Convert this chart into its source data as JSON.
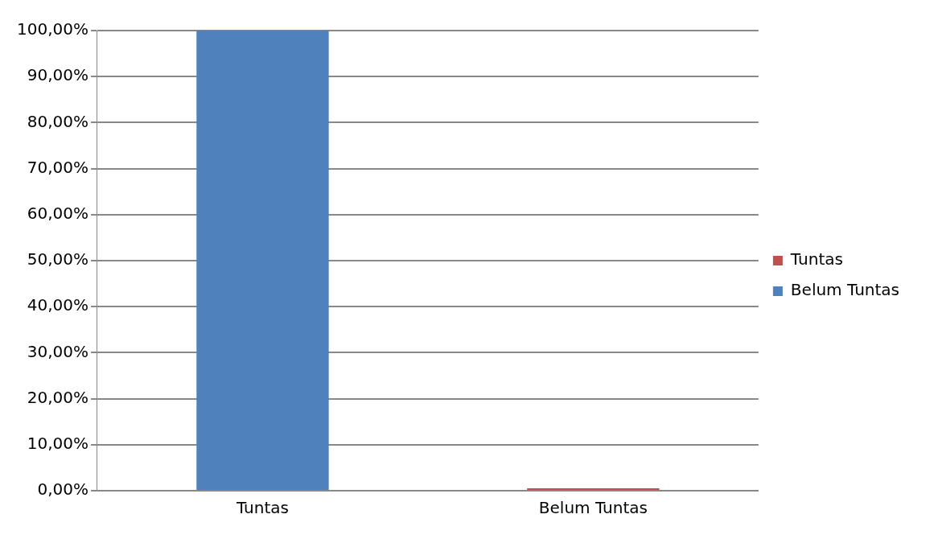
{
  "chart_data": {
    "type": "bar",
    "categories": [
      "Tuntas",
      "Belum Tuntas"
    ],
    "stacked": true,
    "series": [
      {
        "name": "Tuntas",
        "color": "#c0504d",
        "values": [
          null,
          0
        ]
      },
      {
        "name": "Belum Tuntas",
        "color": "#4f81bd",
        "values": [
          100,
          null
        ]
      }
    ],
    "ylim": [
      0,
      100
    ],
    "yticks": [
      {
        "value": 0,
        "label": "0,00%"
      },
      {
        "value": 10,
        "label": "10,00%"
      },
      {
        "value": 20,
        "label": "20,00%"
      },
      {
        "value": 30,
        "label": "30,00%"
      },
      {
        "value": 40,
        "label": "40,00%"
      },
      {
        "value": 50,
        "label": "50,00%"
      },
      {
        "value": 60,
        "label": "60,00%"
      },
      {
        "value": 70,
        "label": "70,00%"
      },
      {
        "value": 80,
        "label": "80,00%"
      },
      {
        "value": 90,
        "label": "90,00%"
      },
      {
        "value": 100,
        "label": "100,00%"
      }
    ],
    "grid": "y",
    "legend": "right"
  }
}
